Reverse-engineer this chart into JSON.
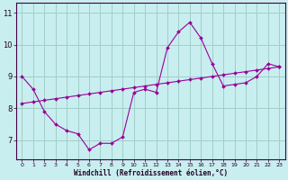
{
  "xlabel": "Windchill (Refroidissement éolien,°C)",
  "background_color": "#c8eef0",
  "grid_color": "#a0cfc8",
  "line_color": "#990099",
  "x": [
    0,
    1,
    2,
    3,
    4,
    5,
    6,
    7,
    8,
    9,
    10,
    11,
    12,
    13,
    14,
    15,
    16,
    17,
    18,
    19,
    20,
    21,
    22,
    23
  ],
  "y_main": [
    9.0,
    8.6,
    7.9,
    7.5,
    7.3,
    7.2,
    6.7,
    6.9,
    6.9,
    7.1,
    8.5,
    8.6,
    8.5,
    9.9,
    10.4,
    10.7,
    10.2,
    9.4,
    8.7,
    8.75,
    8.8,
    9.0,
    9.4,
    9.3
  ],
  "y_trend": [
    8.15,
    8.2,
    8.25,
    8.3,
    8.35,
    8.4,
    8.45,
    8.5,
    8.55,
    8.6,
    8.65,
    8.7,
    8.75,
    8.8,
    8.85,
    8.9,
    8.95,
    9.0,
    9.05,
    9.1,
    9.15,
    9.2,
    9.25,
    9.3
  ],
  "ylim": [
    6.4,
    11.3
  ],
  "yticks": [
    7,
    8,
    9,
    10,
    11
  ],
  "xlim": [
    -0.5,
    23.5
  ],
  "xticks": [
    0,
    1,
    2,
    3,
    4,
    5,
    6,
    7,
    8,
    9,
    10,
    11,
    12,
    13,
    14,
    15,
    16,
    17,
    18,
    19,
    20,
    21,
    22,
    23
  ],
  "xtick_labels": [
    "0",
    "1",
    "2",
    "3",
    "4",
    "5",
    "6",
    "7",
    "8",
    "9",
    "10",
    "11",
    "12",
    "13",
    "14",
    "15",
    "16",
    "17",
    "18",
    "19",
    "20",
    "21",
    "22",
    "23"
  ]
}
